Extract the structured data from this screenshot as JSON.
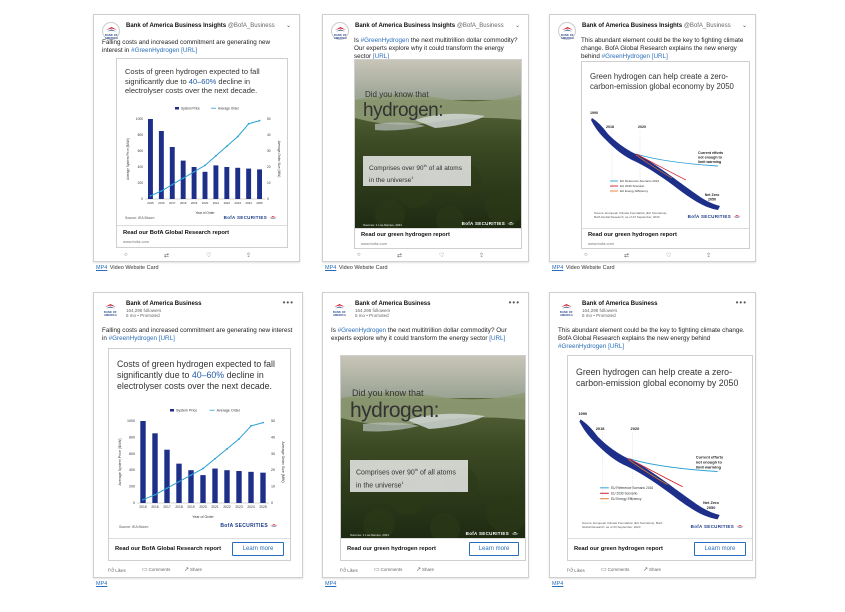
{
  "brand": {
    "navy": "#1b3b8a",
    "link": "#2a6ebb",
    "red": "#d01d2a",
    "bar_color": "#1e2f8a",
    "line_color": "#2aa0d4"
  },
  "twitter": {
    "account_name": "Bank of America Business Insights",
    "handle": "@BofA_Business",
    "posts": [
      {
        "text": "Falling costs and increased commitment are generating new interest in ",
        "tag": "#GreenHydrogen",
        "link": "[URL]"
      },
      {
        "text_pre": "Is ",
        "tag": "#GreenHydrogen",
        "text": " the next multitrillion dollar commodity? Our experts explore why it could transform the energy sector ",
        "link": "[URL]"
      },
      {
        "text": "This abundant element could be the key to fighting climate change. BofA Global Research explains the new energy behind ",
        "tag": "#GreenHydrogen",
        "link": "[URL]"
      }
    ],
    "caption_mp4": "MP4",
    "caption_rest": " Video Website Card",
    "action_icons": [
      "reply-icon",
      "retweet-icon",
      "like-icon",
      "share-icon"
    ],
    "action_glyphs": [
      "○",
      "⇄",
      "♡",
      "⇪"
    ]
  },
  "linkedin": {
    "account_name": "Bank of America Business",
    "followers": "164,298 followers",
    "time": "5 mo • ",
    "promoted": "Promoted",
    "posts": [
      {
        "text": "Falling costs and increased commitment are generating new interest in ",
        "tag": "#GreenHydrogen",
        "link": "[URL]"
      },
      {
        "text_pre": "Is ",
        "tag": "#GreenHydrogen",
        "text": " the next multitrillion dollar commodity? Our experts explore why it could transform the energy sector ",
        "link": "[URL]"
      },
      {
        "text": "This abundant element could be the key to fighting climate change. BofA Global Research explains the new energy behind ",
        "tag": "#GreenHydrogen",
        "link": "[URL]"
      }
    ],
    "caption_mp4": "MP4",
    "learn_more": "Learn more",
    "likes": "Likes",
    "comments": "Comments",
    "share": "Share"
  },
  "creative": {
    "chart_title_pre": "Costs of green hydrogen expected to fall significantly due to ",
    "chart_title_hl": "40–60%",
    "chart_title_post": " decline in electrolyser costs over the next decade.",
    "chart_cta": "Read our BofA Global Research report",
    "cta_url": "www.bofa.com",
    "photo_question": "Did you know that",
    "photo_word": "hydrogen:",
    "photo_box": "Comprises over 90",
    "photo_box_sup": "th",
    "photo_box_after": " of all atoms in the universe",
    "photo_box_note": "1",
    "photo_source": "Sources: 1 Los Alamos, 2021",
    "photo_cta": "Read our green hydrogen report",
    "path_title": "Green hydrogen can help create a zero-carbon-emission global economy by 2050",
    "path_cta": "Read our green hydrogen report",
    "bofa_securities": "BofA SECURITIES",
    "source_chart": "Source: IEA Bloom",
    "source_path": "Source: European Climate Foundation (EU Scenarios), BofA Global Research, as of 23 September, 2020",
    "logo_word": "BANK OF AMERICA"
  },
  "chart_data": [
    {
      "type": "bar",
      "title": "Costs of green hydrogen expected to fall significantly due to 40–60% decline in electrolyser costs over the next decade.",
      "xlabel": "Year of Order",
      "ylabel": "Average System Price ($/kW)",
      "y2label": "Average Order Size (MW)",
      "categories": [
        "2015",
        "2016",
        "2017",
        "2018",
        "2019",
        "2020",
        "2021",
        "2022",
        "2023",
        "2024",
        "2025"
      ],
      "ylim": [
        0,
        1000
      ],
      "y2lim": [
        0,
        50
      ],
      "y_ticks": [
        "0",
        "200",
        "400",
        "600",
        "800",
        "1000"
      ],
      "y2_ticks": [
        "0",
        "10",
        "20",
        "30",
        "40",
        "50"
      ],
      "legend_placement": "top",
      "series": [
        {
          "name": "System Price",
          "kind": "bar",
          "values": [
            1000,
            850,
            650,
            480,
            400,
            340,
            420,
            400,
            390,
            380,
            370
          ]
        },
        {
          "name": "Average Order",
          "kind": "line",
          "axis": "y2",
          "values": [
            2,
            5,
            9,
            13,
            17,
            21,
            27,
            33,
            39,
            47,
            49
          ]
        }
      ]
    },
    {
      "type": "line",
      "title": "Green hydrogen can help create a zero-carbon-emission global economy by 2050",
      "x_labels": [
        "1990",
        "2018",
        "2020"
      ],
      "annotations": [
        "Current efforts not enough to limit warming",
        "Net Zero 2050"
      ],
      "series": [
        {
          "name": "EU Reference Scenario 2016",
          "color": "#2aa0d4"
        },
        {
          "name": "EU 2030 Scenario",
          "color": "#d01d2a"
        },
        {
          "name": "EU Energy Efficiency",
          "color": "#e87b2a"
        }
      ]
    }
  ]
}
